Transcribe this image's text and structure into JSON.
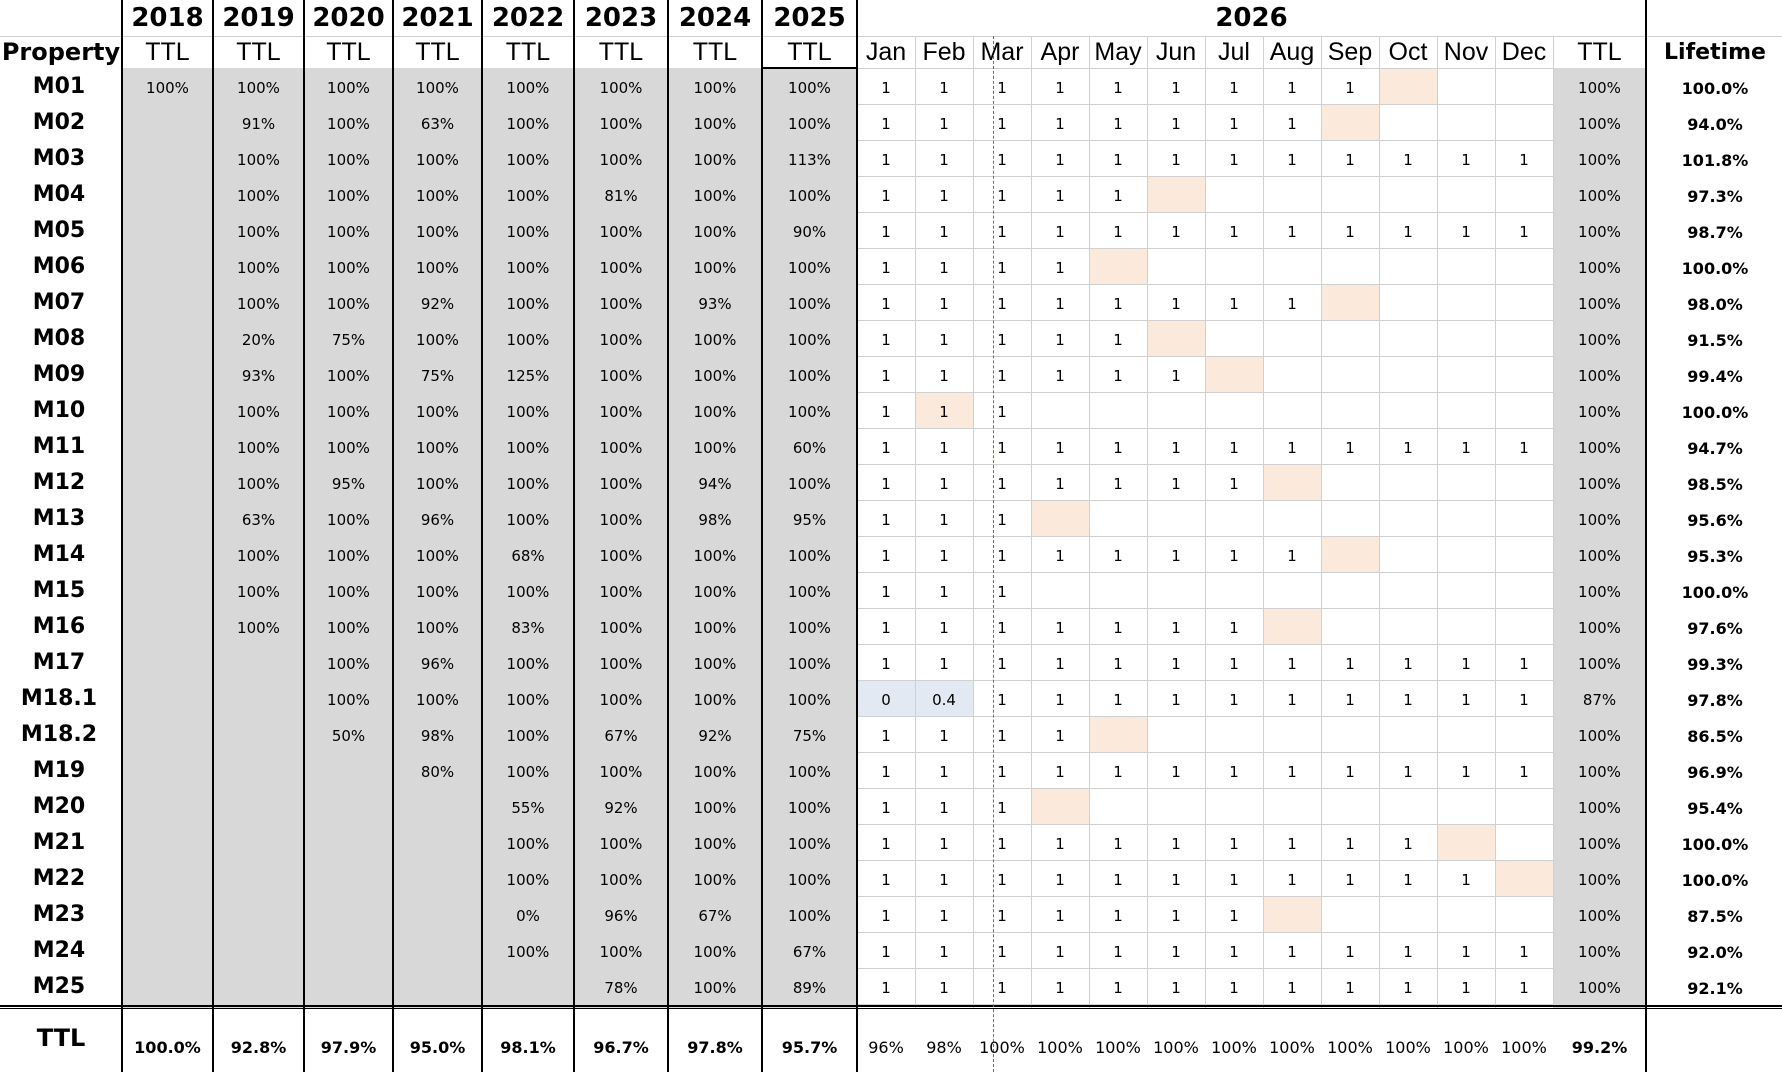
{
  "header": {
    "years": [
      "2018",
      "2019",
      "2020",
      "2021",
      "2022",
      "2023",
      "2024",
      "2025"
    ],
    "year_2026": "2026",
    "property_label": "Property",
    "ttl_label": "TTL",
    "months": [
      "Jan",
      "Feb",
      "Mar",
      "Apr",
      "May",
      "Jun",
      "Jul",
      "Aug",
      "Sep",
      "Oct",
      "Nov",
      "Dec"
    ],
    "ttl_2026_label": "TTL",
    "lifetime_label": "Lifetime"
  },
  "rows": [
    {
      "name": "M01",
      "years": [
        "100%",
        "100%",
        "100%",
        "100%",
        "100%",
        "100%",
        "100%",
        "100%"
      ],
      "months": [
        "1",
        "1",
        "1",
        "1",
        "1",
        "1",
        "1",
        "1",
        "1",
        "",
        "",
        ""
      ],
      "ttl": "100%",
      "lifetime": "100.0%"
    },
    {
      "name": "M02",
      "years": [
        "",
        "91%",
        "100%",
        "63%",
        "100%",
        "100%",
        "100%",
        "100%"
      ],
      "months": [
        "1",
        "1",
        "1",
        "1",
        "1",
        "1",
        "1",
        "1",
        "",
        "",
        "",
        ""
      ],
      "ttl": "100%",
      "lifetime": "94.0%"
    },
    {
      "name": "M03",
      "years": [
        "",
        "100%",
        "100%",
        "100%",
        "100%",
        "100%",
        "100%",
        "113%"
      ],
      "months": [
        "1",
        "1",
        "1",
        "1",
        "1",
        "1",
        "1",
        "1",
        "1",
        "1",
        "1",
        "1"
      ],
      "ttl": "100%",
      "lifetime": "101.8%"
    },
    {
      "name": "M04",
      "years": [
        "",
        "100%",
        "100%",
        "100%",
        "100%",
        "81%",
        "100%",
        "100%"
      ],
      "months": [
        "1",
        "1",
        "1",
        "1",
        "1",
        "",
        "",
        "",
        "",
        "",
        "",
        ""
      ],
      "ttl": "100%",
      "lifetime": "97.3%"
    },
    {
      "name": "M05",
      "years": [
        "",
        "100%",
        "100%",
        "100%",
        "100%",
        "100%",
        "100%",
        "90%"
      ],
      "months": [
        "1",
        "1",
        "1",
        "1",
        "1",
        "1",
        "1",
        "1",
        "1",
        "1",
        "1",
        "1"
      ],
      "ttl": "100%",
      "lifetime": "98.7%"
    },
    {
      "name": "M06",
      "years": [
        "",
        "100%",
        "100%",
        "100%",
        "100%",
        "100%",
        "100%",
        "100%"
      ],
      "months": [
        "1",
        "1",
        "1",
        "1",
        "",
        "",
        "",
        "",
        "",
        "",
        "",
        ""
      ],
      "ttl": "100%",
      "lifetime": "100.0%"
    },
    {
      "name": "M07",
      "years": [
        "",
        "100%",
        "100%",
        "92%",
        "100%",
        "100%",
        "93%",
        "100%"
      ],
      "months": [
        "1",
        "1",
        "1",
        "1",
        "1",
        "1",
        "1",
        "1",
        "",
        "",
        "",
        ""
      ],
      "ttl": "100%",
      "lifetime": "98.0%"
    },
    {
      "name": "M08",
      "years": [
        "",
        "20%",
        "75%",
        "100%",
        "100%",
        "100%",
        "100%",
        "100%"
      ],
      "months": [
        "1",
        "1",
        "1",
        "1",
        "1",
        "",
        "",
        "",
        "",
        "",
        "",
        ""
      ],
      "ttl": "100%",
      "lifetime": "91.5%"
    },
    {
      "name": "M09",
      "years": [
        "",
        "93%",
        "100%",
        "75%",
        "125%",
        "100%",
        "100%",
        "100%"
      ],
      "months": [
        "1",
        "1",
        "1",
        "1",
        "1",
        "1",
        "",
        "",
        "",
        "",
        "",
        ""
      ],
      "ttl": "100%",
      "lifetime": "99.4%"
    },
    {
      "name": "M10",
      "years": [
        "",
        "100%",
        "100%",
        "100%",
        "100%",
        "100%",
        "100%",
        "100%"
      ],
      "months": [
        "1",
        "1",
        "1",
        "",
        "",
        "",
        "",
        "",
        "",
        "",
        "",
        ""
      ],
      "ttl": "100%",
      "lifetime": "100.0%"
    },
    {
      "name": "M11",
      "years": [
        "",
        "100%",
        "100%",
        "100%",
        "100%",
        "100%",
        "100%",
        "60%"
      ],
      "months": [
        "1",
        "1",
        "1",
        "1",
        "1",
        "1",
        "1",
        "1",
        "1",
        "1",
        "1",
        "1"
      ],
      "ttl": "100%",
      "lifetime": "94.7%"
    },
    {
      "name": "M12",
      "years": [
        "",
        "100%",
        "95%",
        "100%",
        "100%",
        "100%",
        "94%",
        "100%"
      ],
      "months": [
        "1",
        "1",
        "1",
        "1",
        "1",
        "1",
        "1",
        "",
        "",
        "",
        "",
        ""
      ],
      "ttl": "100%",
      "lifetime": "98.5%"
    },
    {
      "name": "M13",
      "years": [
        "",
        "63%",
        "100%",
        "96%",
        "100%",
        "100%",
        "98%",
        "95%"
      ],
      "months": [
        "1",
        "1",
        "1",
        "",
        "",
        "",
        "",
        "",
        "",
        "",
        "",
        ""
      ],
      "ttl": "100%",
      "lifetime": "95.6%"
    },
    {
      "name": "M14",
      "years": [
        "",
        "100%",
        "100%",
        "100%",
        "68%",
        "100%",
        "100%",
        "100%"
      ],
      "months": [
        "1",
        "1",
        "1",
        "1",
        "1",
        "1",
        "1",
        "1",
        "",
        "",
        "",
        ""
      ],
      "ttl": "100%",
      "lifetime": "95.3%"
    },
    {
      "name": "M15",
      "years": [
        "",
        "100%",
        "100%",
        "100%",
        "100%",
        "100%",
        "100%",
        "100%"
      ],
      "months": [
        "1",
        "1",
        "1",
        "",
        "",
        "",
        "",
        "",
        "",
        "",
        "",
        ""
      ],
      "ttl": "100%",
      "lifetime": "100.0%"
    },
    {
      "name": "M16",
      "years": [
        "",
        "100%",
        "100%",
        "100%",
        "83%",
        "100%",
        "100%",
        "100%"
      ],
      "months": [
        "1",
        "1",
        "1",
        "1",
        "1",
        "1",
        "1",
        "",
        "",
        "",
        "",
        ""
      ],
      "ttl": "100%",
      "lifetime": "97.6%"
    },
    {
      "name": "M17",
      "years": [
        "",
        "",
        "100%",
        "96%",
        "100%",
        "100%",
        "100%",
        "100%"
      ],
      "months": [
        "1",
        "1",
        "1",
        "1",
        "1",
        "1",
        "1",
        "1",
        "1",
        "1",
        "1",
        "1"
      ],
      "ttl": "100%",
      "lifetime": "99.3%"
    },
    {
      "name": "M18.1",
      "years": [
        "",
        "",
        "100%",
        "100%",
        "100%",
        "100%",
        "100%",
        "100%"
      ],
      "months": [
        "0",
        "0.4",
        "1",
        "1",
        "1",
        "1",
        "1",
        "1",
        "1",
        "1",
        "1",
        "1"
      ],
      "ttl": "87%",
      "lifetime": "97.8%"
    },
    {
      "name": "M18.2",
      "years": [
        "",
        "",
        "50%",
        "98%",
        "100%",
        "67%",
        "92%",
        "75%"
      ],
      "months": [
        "1",
        "1",
        "1",
        "1",
        "",
        "",
        "",
        "",
        "",
        "",
        "",
        ""
      ],
      "ttl": "100%",
      "lifetime": "86.5%"
    },
    {
      "name": "M19",
      "years": [
        "",
        "",
        "",
        "80%",
        "100%",
        "100%",
        "100%",
        "100%"
      ],
      "months": [
        "1",
        "1",
        "1",
        "1",
        "1",
        "1",
        "1",
        "1",
        "1",
        "1",
        "1",
        "1"
      ],
      "ttl": "100%",
      "lifetime": "96.9%"
    },
    {
      "name": "M20",
      "years": [
        "",
        "",
        "",
        "",
        "55%",
        "92%",
        "100%",
        "100%"
      ],
      "months": [
        "1",
        "1",
        "1",
        "",
        "",
        "",
        "",
        "",
        "",
        "",
        "",
        ""
      ],
      "ttl": "100%",
      "lifetime": "95.4%"
    },
    {
      "name": "M21",
      "years": [
        "",
        "",
        "",
        "",
        "100%",
        "100%",
        "100%",
        "100%"
      ],
      "months": [
        "1",
        "1",
        "1",
        "1",
        "1",
        "1",
        "1",
        "1",
        "1",
        "1",
        "",
        ""
      ],
      "ttl": "100%",
      "lifetime": "100.0%"
    },
    {
      "name": "M22",
      "years": [
        "",
        "",
        "",
        "",
        "100%",
        "100%",
        "100%",
        "100%"
      ],
      "months": [
        "1",
        "1",
        "1",
        "1",
        "1",
        "1",
        "1",
        "1",
        "1",
        "1",
        "1",
        ""
      ],
      "ttl": "100%",
      "lifetime": "100.0%"
    },
    {
      "name": "M23",
      "years": [
        "",
        "",
        "",
        "",
        "0%",
        "96%",
        "67%",
        "100%"
      ],
      "months": [
        "1",
        "1",
        "1",
        "1",
        "1",
        "1",
        "1",
        "",
        "",
        "",
        "",
        ""
      ],
      "ttl": "100%",
      "lifetime": "87.5%"
    },
    {
      "name": "M24",
      "years": [
        "",
        "",
        "",
        "",
        "100%",
        "100%",
        "100%",
        "67%"
      ],
      "months": [
        "1",
        "1",
        "1",
        "1",
        "1",
        "1",
        "1",
        "1",
        "1",
        "1",
        "1",
        "1"
      ],
      "ttl": "100%",
      "lifetime": "92.0%"
    },
    {
      "name": "M25",
      "years": [
        "",
        "",
        "",
        "",
        "",
        "78%",
        "100%",
        "89%"
      ],
      "months": [
        "1",
        "1",
        "1",
        "1",
        "1",
        "1",
        "1",
        "1",
        "1",
        "1",
        "1",
        "1"
      ],
      "ttl": "100%",
      "lifetime": "92.1%"
    }
  ],
  "highlights": {
    "next_month_month_index": [
      9,
      8,
      null,
      5,
      null,
      4,
      8,
      5,
      6,
      1,
      null,
      7,
      3,
      8,
      null,
      7,
      null,
      null,
      4,
      null,
      3,
      10,
      11,
      7,
      null,
      null
    ],
    "highlight_color": "#fbeadc",
    "m18_1_low_months_color": "#e2e9f3",
    "grey_column_color": "#d8d8d8",
    "current_month_marker_color": "#4a6bd3"
  },
  "totals": {
    "label": "TTL",
    "years": [
      "100.0%",
      "92.8%",
      "97.9%",
      "95.0%",
      "98.1%",
      "96.7%",
      "97.8%",
      "95.7%"
    ],
    "months": [
      "96%",
      "98%",
      "100%",
      "100%",
      "100%",
      "100%",
      "100%",
      "100%",
      "100%",
      "100%",
      "100%",
      "100%"
    ],
    "ttl": "99.2%",
    "lifetime": ""
  }
}
